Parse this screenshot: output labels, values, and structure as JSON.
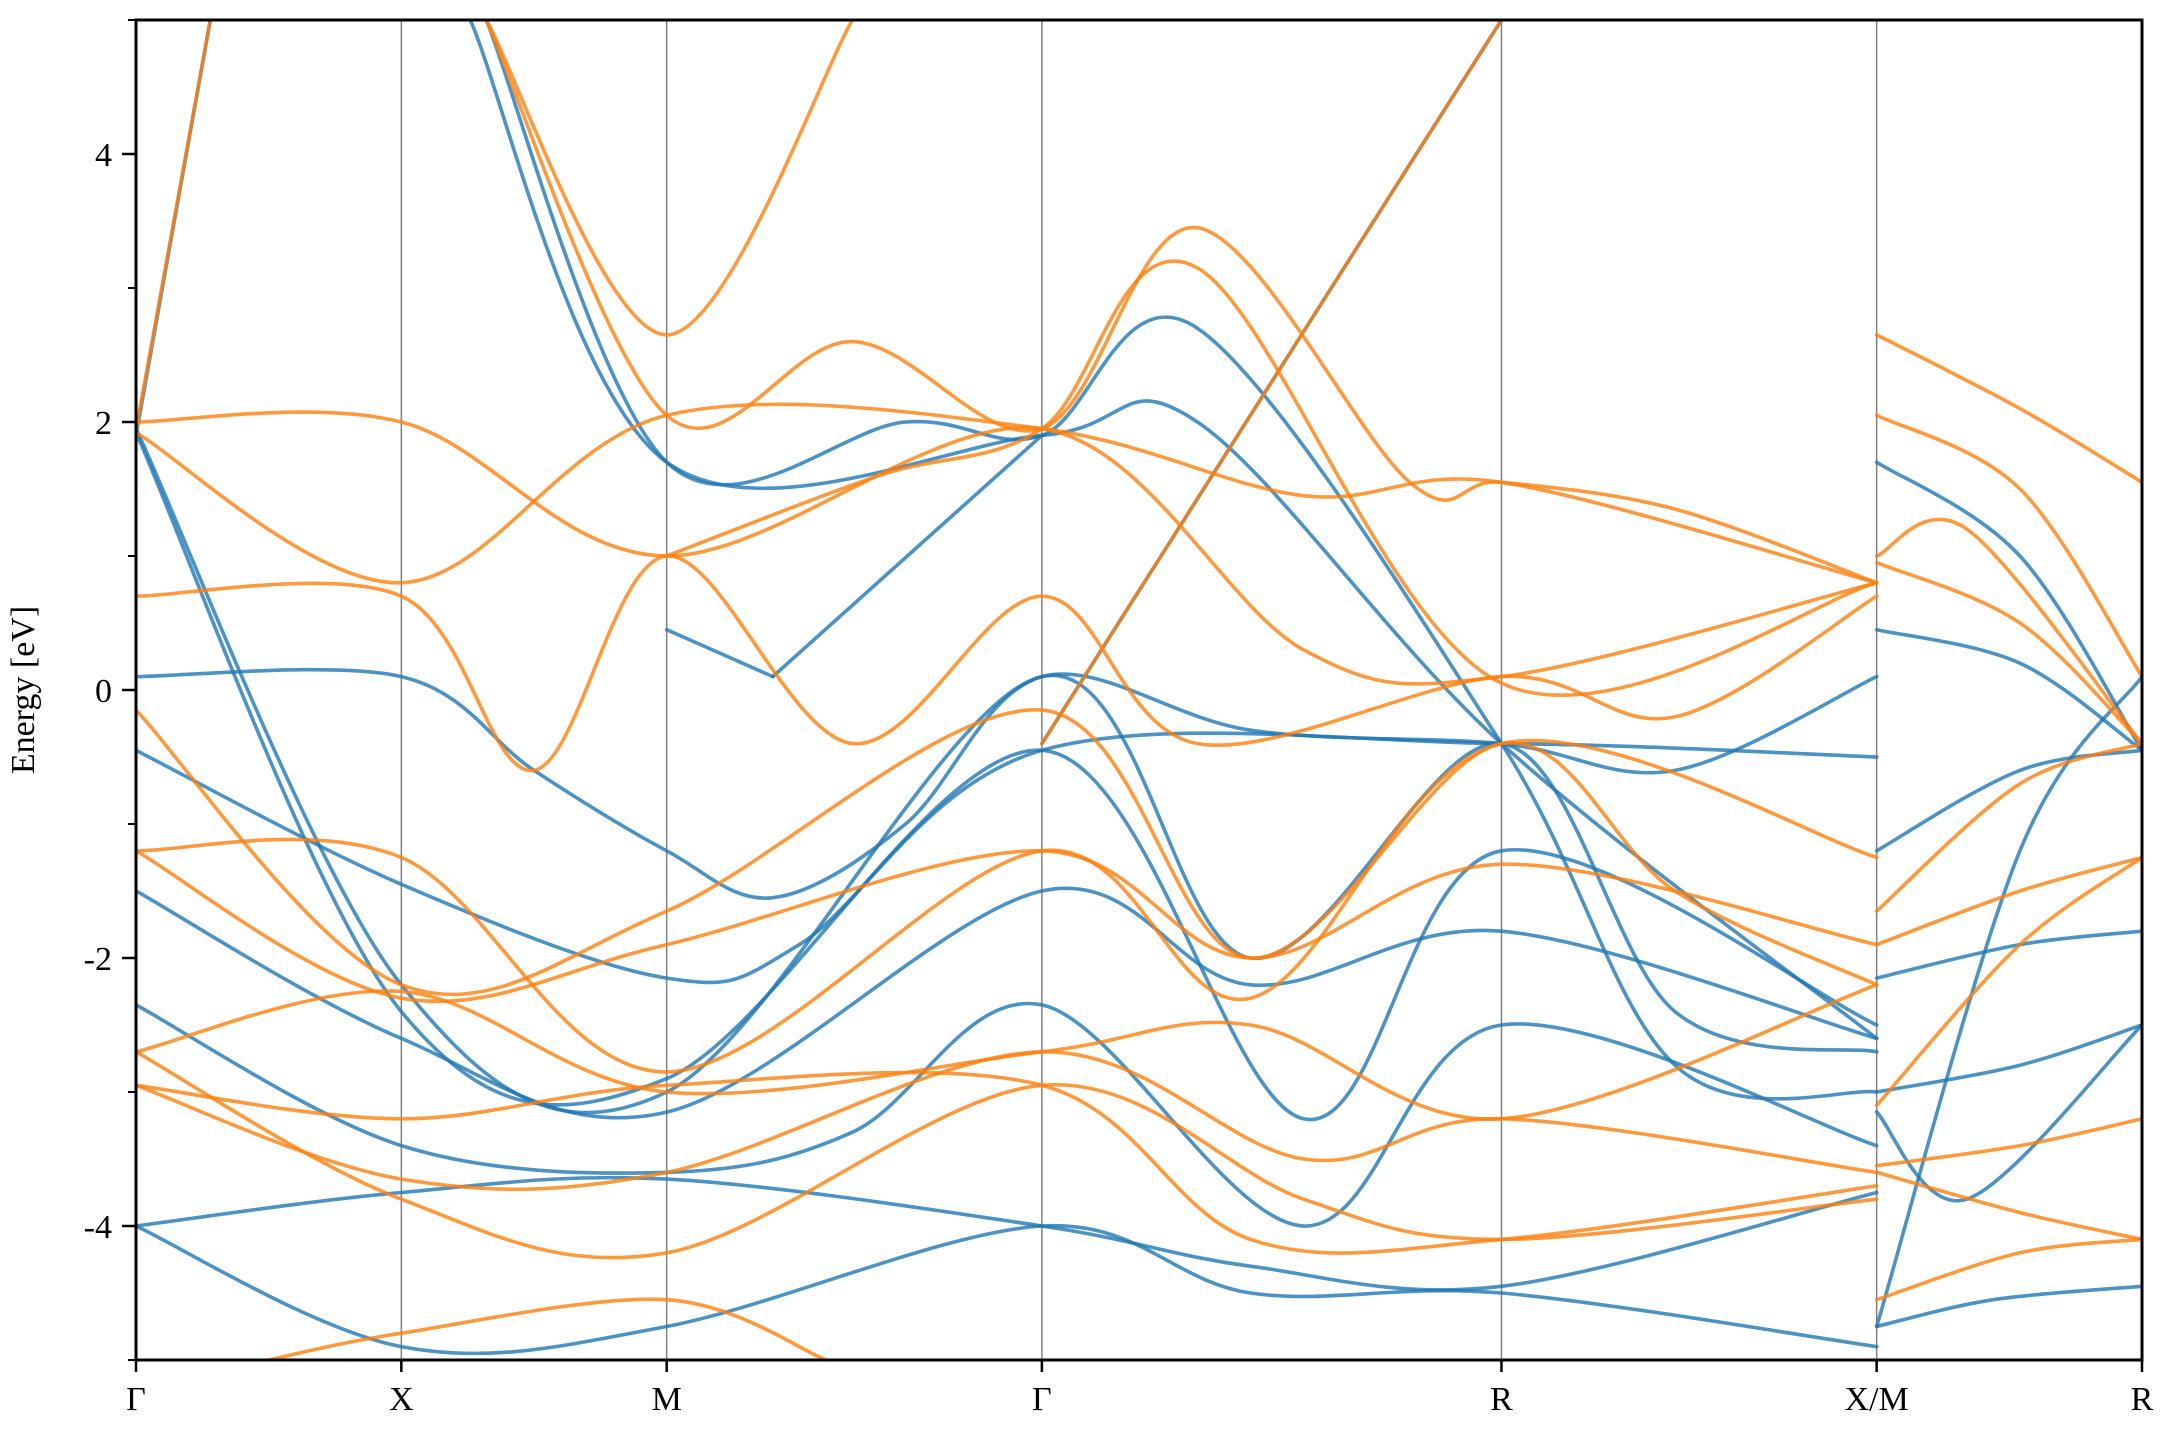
{
  "chart_data": {
    "type": "line",
    "title": "",
    "xlabel": "",
    "ylabel": "Energy [eV]",
    "ylim": [
      -5,
      5
    ],
    "yticks_major": [
      -4,
      -2,
      0,
      2,
      4
    ],
    "yticks_major_labels": [
      "-4",
      "-2",
      "0",
      "2",
      "4"
    ],
    "yticks_minor": [
      -5,
      -3,
      -1,
      1,
      3,
      5
    ],
    "grid": "vertical lines at high-symmetry points",
    "legend": "none",
    "colors": {
      "spin_a": "#1f77b4",
      "spin_b": "#ff7f0e",
      "divider": "#808080",
      "frame": "#000000"
    },
    "xlim": [
      0,
      3.732
    ],
    "kpoints": [
      {
        "label": "Γ",
        "x": 0.0
      },
      {
        "label": "X",
        "x": 0.5
      },
      {
        "label": "M",
        "x": 1.0
      },
      {
        "label": "Γ",
        "x": 1.707
      },
      {
        "label": "R",
        "x": 2.573
      },
      {
        "label": "X/M",
        "x": 3.28
      },
      {
        "label": "R",
        "x": 3.78
      }
    ],
    "series": [
      {
        "color": "#1f77b4",
        "segments": [
          [
            [
              0.0,
              0.1
            ],
            [
              0.5,
              0.1
            ],
            [
              0.75,
              -0.6
            ],
            [
              1.0,
              -1.2
            ],
            [
              1.2,
              -1.55
            ],
            [
              1.45,
              -1.0
            ],
            [
              1.707,
              0.1
            ],
            [
              2.1,
              -0.3
            ],
            [
              2.573,
              -0.4
            ],
            [
              2.9,
              -0.6
            ],
            [
              3.28,
              0.1
            ]
          ],
          [
            [
              0.0,
              -0.45
            ],
            [
              0.5,
              -1.45
            ],
            [
              1.0,
              -2.15
            ],
            [
              1.25,
              -1.9
            ],
            [
              1.707,
              -0.45
            ],
            [
              2.573,
              -0.4
            ],
            [
              3.28,
              -0.5
            ]
          ],
          [
            [
              0.0,
              -1.5
            ],
            [
              0.5,
              -2.6
            ],
            [
              1.0,
              -3.15
            ],
            [
              1.707,
              -1.5
            ],
            [
              2.1,
              -2.2
            ],
            [
              2.573,
              -1.8
            ],
            [
              3.28,
              -2.6
            ]
          ],
          [
            [
              0.0,
              -2.35
            ],
            [
              0.5,
              -3.4
            ],
            [
              1.0,
              -3.6
            ],
            [
              1.35,
              -3.3
            ],
            [
              1.707,
              -2.35
            ],
            [
              2.2,
              -4.0
            ],
            [
              2.573,
              -2.5
            ],
            [
              3.28,
              -3.4
            ]
          ],
          [
            [
              0.0,
              -4.0
            ],
            [
              0.5,
              -3.75
            ],
            [
              1.0,
              -3.65
            ],
            [
              1.707,
              -4.0
            ],
            [
              2.1,
              -4.3
            ],
            [
              2.573,
              -4.45
            ],
            [
              3.28,
              -3.75
            ]
          ],
          [
            [
              0.0,
              -4.0
            ],
            [
              0.5,
              -4.9
            ],
            [
              1.0,
              -4.75
            ],
            [
              1.707,
              -4.0
            ],
            [
              2.1,
              -4.5
            ],
            [
              2.573,
              -4.5
            ],
            [
              3.28,
              -4.9
            ]
          ],
          [
            [
              0.0,
              1.9
            ],
            [
              0.14,
              5.0
            ]
          ],
          [
            [
              0.0,
              1.95
            ],
            [
              0.5,
              -2.2
            ],
            [
              1.0,
              -3.0
            ],
            [
              1.707,
              0.1
            ],
            [
              2.1,
              -2.0
            ],
            [
              2.573,
              -0.4
            ],
            [
              2.9,
              -2.4
            ],
            [
              3.28,
              -2.7
            ]
          ],
          [
            [
              0.0,
              1.92
            ],
            [
              0.5,
              -2.4
            ],
            [
              1.0,
              -2.9
            ],
            [
              1.707,
              -0.45
            ],
            [
              2.2,
              -3.2
            ],
            [
              2.573,
              -1.2
            ],
            [
              3.28,
              -2.5
            ]
          ],
          [
            [
              0.66,
              5.0
            ],
            [
              1.0,
              1.7
            ],
            [
              1.45,
              2.0
            ],
            [
              1.707,
              1.9
            ],
            [
              2.0,
              2.7
            ],
            [
              2.573,
              -0.4
            ],
            [
              2.9,
              -2.8
            ],
            [
              3.28,
              -3.0
            ]
          ],
          [
            [
              0.63,
              5.0
            ],
            [
              1.0,
              1.7
            ],
            [
              1.707,
              1.9
            ],
            [
              2.0,
              2.0
            ],
            [
              2.573,
              -0.4
            ],
            [
              3.28,
              -2.6
            ]
          ],
          [
            [
              1.2,
              0.1
            ],
            [
              1.707,
              1.9
            ]
          ],
          [
            [
              1.0,
              0.45
            ],
            [
              1.2,
              0.1
            ]
          ],
          [
            [
              1.707,
              -0.4
            ],
            [
              2.573,
              5.0
            ]
          ],
          [
            [
              3.28,
              1.7
            ],
            [
              3.55,
              1.0
            ],
            [
              3.78,
              -0.45
            ]
          ],
          [
            [
              3.28,
              0.45
            ],
            [
              3.55,
              0.2
            ],
            [
              3.78,
              -0.45
            ]
          ],
          [
            [
              3.28,
              -1.2
            ],
            [
              3.55,
              -0.6
            ],
            [
              3.78,
              -0.45
            ]
          ],
          [
            [
              3.28,
              -2.15
            ],
            [
              3.55,
              -1.9
            ],
            [
              3.78,
              -1.8
            ]
          ],
          [
            [
              3.28,
              -3.0
            ],
            [
              3.55,
              -2.8
            ],
            [
              3.78,
              -2.5
            ]
          ],
          [
            [
              3.28,
              -4.75
            ],
            [
              3.5,
              -4.55
            ],
            [
              3.78,
              -4.45
            ]
          ],
          [
            [
              3.28,
              -3.15
            ],
            [
              3.45,
              -3.8
            ],
            [
              3.78,
              -2.5
            ]
          ],
          [
            [
              3.28,
              -4.75
            ],
            [
              3.55,
              -1.2
            ],
            [
              3.78,
              0.1
            ]
          ]
        ]
      },
      {
        "color": "#ff7f0e",
        "segments": [
          [
            [
              0.0,
              0.7
            ],
            [
              0.5,
              0.7
            ],
            [
              0.75,
              -0.6
            ],
            [
              1.0,
              1.0
            ],
            [
              1.35,
              -0.4
            ],
            [
              1.707,
              0.7
            ],
            [
              2.0,
              -0.4
            ],
            [
              2.573,
              0.1
            ],
            [
              2.9,
              -0.2
            ],
            [
              3.28,
              0.7
            ]
          ],
          [
            [
              0.0,
              2.0
            ],
            [
              0.5,
              2.0
            ],
            [
              1.0,
              1.0
            ],
            [
              1.707,
              1.95
            ],
            [
              2.2,
              0.3
            ],
            [
              2.573,
              0.1
            ],
            [
              3.28,
              0.8
            ]
          ],
          [
            [
              0.0,
              1.92
            ],
            [
              0.5,
              0.8
            ],
            [
              1.0,
              2.05
            ],
            [
              1.707,
              1.95
            ],
            [
              2.2,
              1.45
            ],
            [
              2.573,
              1.55
            ],
            [
              3.28,
              0.8
            ]
          ],
          [
            [
              0.0,
              1.94
            ],
            [
              0.14,
              5.0
            ]
          ],
          [
            [
              0.66,
              5.0
            ],
            [
              1.0,
              2.65
            ],
            [
              1.35,
              5.0
            ]
          ],
          [
            [
              0.66,
              5.0
            ],
            [
              1.0,
              2.05
            ],
            [
              1.35,
              2.6
            ],
            [
              1.707,
              1.95
            ],
            [
              2.0,
              3.45
            ],
            [
              2.4,
              1.55
            ],
            [
              2.573,
              1.55
            ],
            [
              2.9,
              1.35
            ],
            [
              3.28,
              0.8
            ]
          ],
          [
            [
              1.0,
              1.0
            ],
            [
              1.4,
              1.6
            ],
            [
              1.707,
              1.95
            ],
            [
              2.0,
              3.15
            ],
            [
              2.573,
              0.05
            ],
            [
              3.28,
              0.8
            ]
          ],
          [
            [
              0.0,
              -0.15
            ],
            [
              0.5,
              -2.2
            ],
            [
              1.0,
              -1.65
            ],
            [
              1.707,
              -0.15
            ],
            [
              2.1,
              -2.0
            ],
            [
              2.573,
              -0.4
            ],
            [
              2.9,
              -1.5
            ],
            [
              3.28,
              -2.2
            ]
          ],
          [
            [
              0.0,
              -1.2
            ],
            [
              0.5,
              -1.25
            ],
            [
              1.0,
              -2.85
            ],
            [
              1.707,
              -1.2
            ],
            [
              2.1,
              -2.3
            ],
            [
              2.573,
              -0.4
            ],
            [
              3.28,
              -1.25
            ]
          ],
          [
            [
              0.0,
              -1.2
            ],
            [
              0.5,
              -2.3
            ],
            [
              1.0,
              -1.9
            ],
            [
              1.707,
              -1.2
            ],
            [
              2.1,
              -2.0
            ],
            [
              2.573,
              -1.3
            ],
            [
              3.28,
              -1.9
            ]
          ],
          [
            [
              0.0,
              -2.7
            ],
            [
              0.5,
              -2.25
            ],
            [
              1.0,
              -3.0
            ],
            [
              1.707,
              -2.7
            ],
            [
              2.1,
              -2.5
            ],
            [
              2.573,
              -3.2
            ],
            [
              3.28,
              -2.2
            ]
          ],
          [
            [
              0.0,
              -2.95
            ],
            [
              0.5,
              -3.2
            ],
            [
              1.0,
              -2.95
            ],
            [
              1.707,
              -2.95
            ],
            [
              2.1,
              -4.1
            ],
            [
              2.573,
              -4.1
            ],
            [
              3.28,
              -3.7
            ]
          ],
          [
            [
              0.0,
              -2.95
            ],
            [
              0.5,
              -3.65
            ],
            [
              1.0,
              -3.6
            ],
            [
              1.707,
              -2.7
            ],
            [
              2.2,
              -3.5
            ],
            [
              2.573,
              -3.2
            ],
            [
              3.28,
              -3.6
            ]
          ],
          [
            [
              0.0,
              -2.7
            ],
            [
              0.5,
              -3.8
            ],
            [
              1.0,
              -4.2
            ],
            [
              1.707,
              -2.95
            ],
            [
              2.2,
              -3.8
            ],
            [
              2.573,
              -4.1
            ],
            [
              3.28,
              -3.8
            ]
          ],
          [
            [
              0.25,
              -5.0
            ],
            [
              0.5,
              -4.8
            ],
            [
              1.0,
              -4.55
            ],
            [
              1.3,
              -5.0
            ]
          ],
          [
            [
              1.707,
              -0.4
            ],
            [
              2.573,
              5.0
            ]
          ],
          [
            [
              3.28,
              2.65
            ],
            [
              3.55,
              2.1
            ],
            [
              3.78,
              1.55
            ]
          ],
          [
            [
              3.28,
              2.05
            ],
            [
              3.55,
              1.5
            ],
            [
              3.78,
              0.1
            ]
          ],
          [
            [
              3.28,
              1.0
            ],
            [
              3.45,
              1.2
            ],
            [
              3.78,
              -0.4
            ]
          ],
          [
            [
              3.28,
              0.95
            ],
            [
              3.55,
              0.5
            ],
            [
              3.78,
              -0.4
            ]
          ],
          [
            [
              3.28,
              -1.65
            ],
            [
              3.55,
              -0.7
            ],
            [
              3.78,
              -0.4
            ]
          ],
          [
            [
              3.28,
              -1.9
            ],
            [
              3.55,
              -1.5
            ],
            [
              3.78,
              -1.25
            ]
          ],
          [
            [
              3.28,
              -3.55
            ],
            [
              3.55,
              -3.4
            ],
            [
              3.78,
              -3.2
            ]
          ],
          [
            [
              3.28,
              -3.6
            ],
            [
              3.55,
              -3.9
            ],
            [
              3.78,
              -4.1
            ]
          ],
          [
            [
              3.28,
              -4.55
            ],
            [
              3.55,
              -4.2
            ],
            [
              3.78,
              -4.1
            ]
          ],
          [
            [
              3.28,
              -3.1
            ],
            [
              3.55,
              -1.9
            ],
            [
              3.78,
              -1.25
            ]
          ]
        ]
      }
    ]
  }
}
